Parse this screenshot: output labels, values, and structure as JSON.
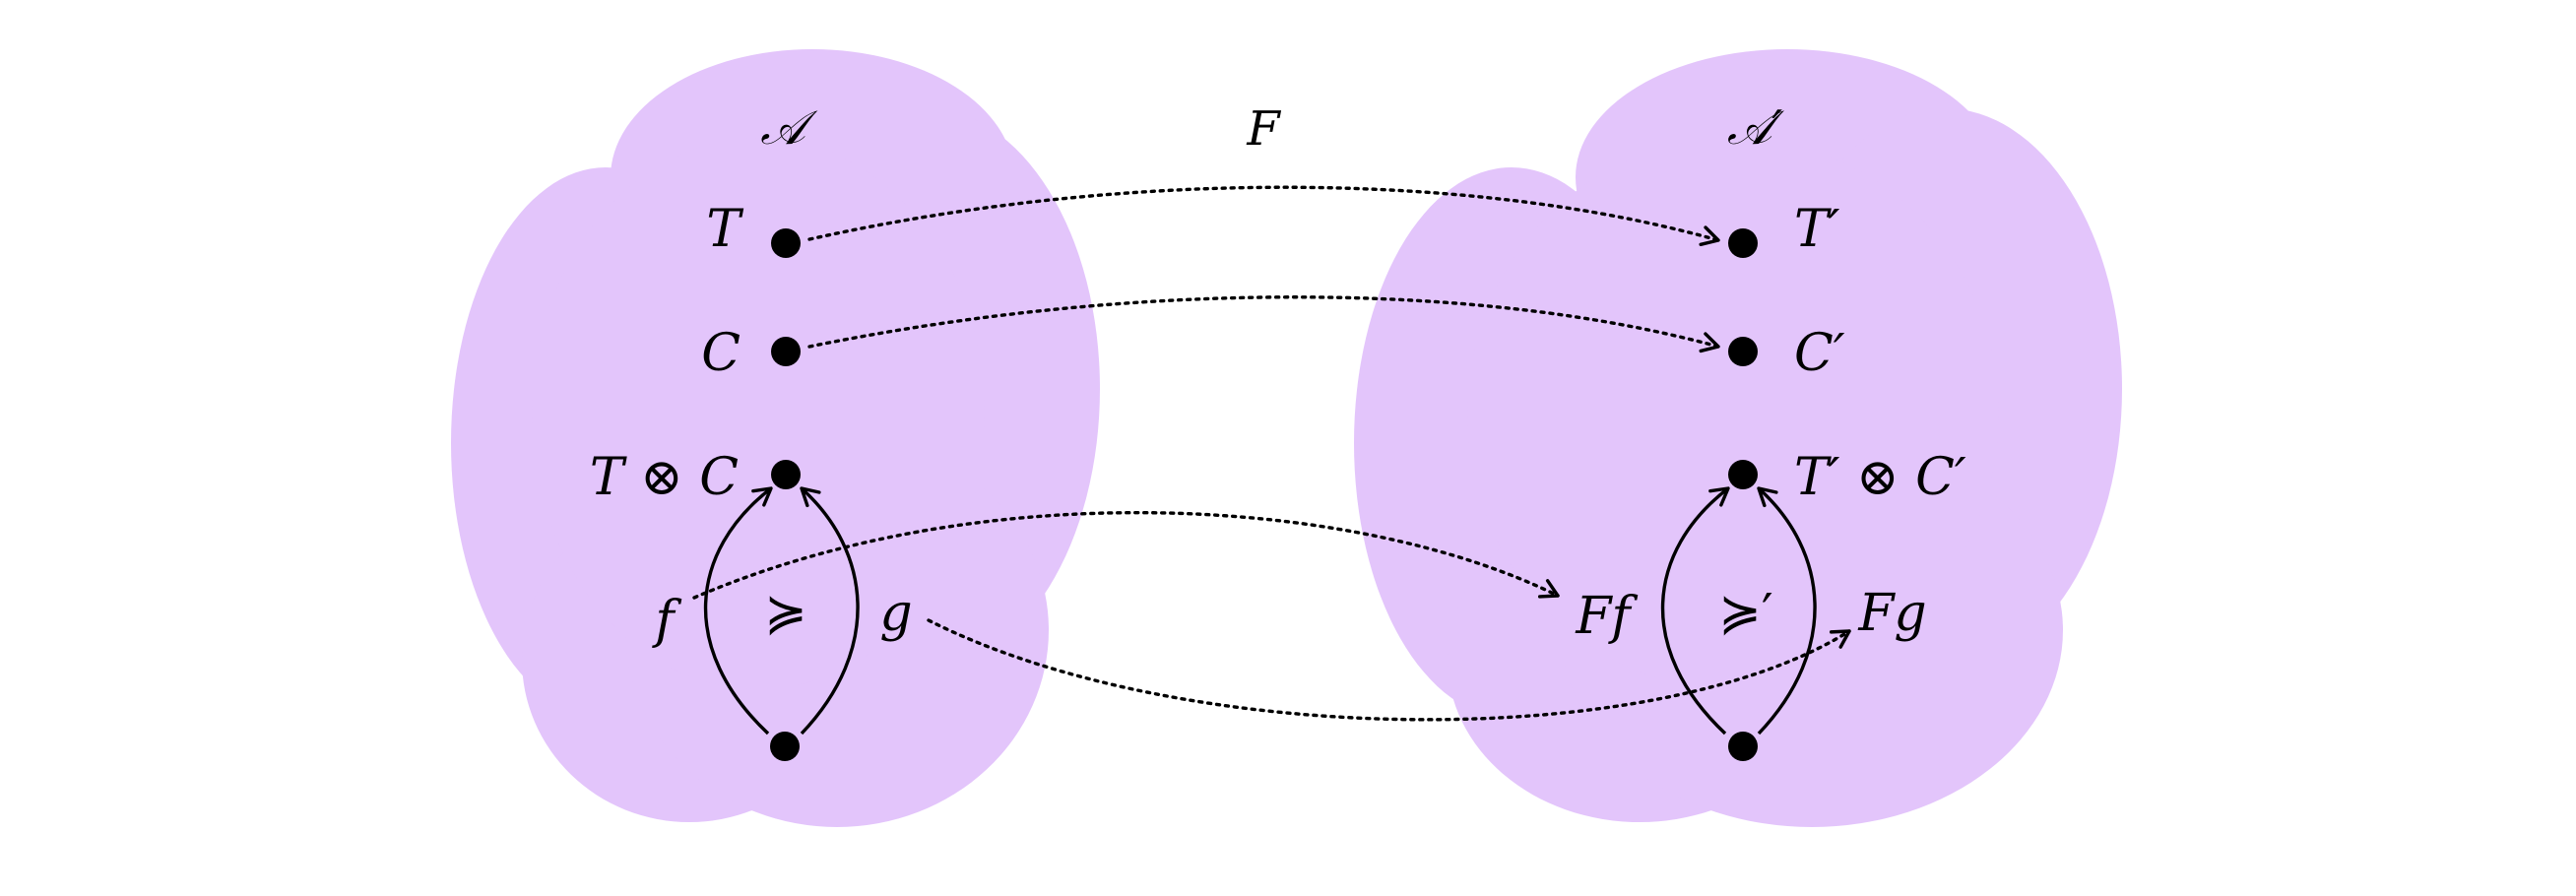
{
  "colors": {
    "blob_fill": "#e3c5fb",
    "ink": "#000000"
  },
  "left_category": {
    "label": "𝒜",
    "objects": [
      {
        "id": "T",
        "label": "T"
      },
      {
        "id": "C",
        "label": "C"
      },
      {
        "id": "TC",
        "label": "T ⊗ C"
      }
    ],
    "morphisms": {
      "f": "f",
      "g": "g"
    },
    "relation": "≽"
  },
  "right_category": {
    "label": "𝒜′",
    "objects": [
      {
        "id": "T",
        "label": "T′"
      },
      {
        "id": "C",
        "label": "C′"
      },
      {
        "id": "TC",
        "label": "T′ ⊗ C′"
      }
    ],
    "morphisms": {
      "f": "Ff",
      "g": "Fg"
    },
    "relation": "≽′"
  },
  "functor": {
    "label": "F"
  }
}
